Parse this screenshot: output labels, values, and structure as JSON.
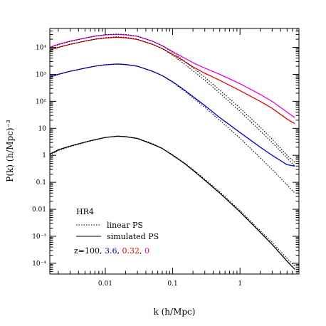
{
  "chart_data": {
    "type": "line",
    "xlabel": "k (h/Mpc)",
    "ylabel": "P(k) (h/Mpc)⁻³",
    "xscale": "log",
    "yscale": "log",
    "xlim": [
      0.0015,
      7.5
    ],
    "ylim": [
      4e-05,
      50000
    ],
    "grid": false,
    "x_ticks": [
      {
        "value": 0.01,
        "label": "0.01"
      },
      {
        "value": 0.1,
        "label": "0.1"
      },
      {
        "value": 1,
        "label": "1"
      }
    ],
    "y_ticks": [
      {
        "value": 0.0001,
        "label": "10⁻⁴"
      },
      {
        "value": 0.001,
        "label": "10⁻³"
      },
      {
        "value": 0.01,
        "label": "0.01"
      },
      {
        "value": 0.1,
        "label": "0.1"
      },
      {
        "value": 1,
        "label": "1"
      },
      {
        "value": 10,
        "label": "10"
      },
      {
        "value": 100,
        "label": "10²"
      },
      {
        "value": 1000,
        "label": "10³"
      },
      {
        "value": 10000,
        "label": "10⁴"
      }
    ],
    "legend": {
      "title": "HR4",
      "linear_label": "linear PS",
      "simulated_label": "simulated PS",
      "redshift_prefix": "z=100, ",
      "redshifts": [
        {
          "label": "3.6",
          "color": "#0000ee",
          "sep": ", "
        },
        {
          "label": "0.32",
          "color": "#ee0000",
          "sep": ", "
        },
        {
          "label": "0",
          "color": "#ee00ee",
          "sep": ""
        }
      ]
    },
    "series": [
      {
        "z": "100",
        "style": "simulated",
        "color": "#000000",
        "x": [
          0.0015,
          0.002,
          0.003,
          0.005,
          0.007,
          0.01,
          0.015,
          0.02,
          0.03,
          0.05,
          0.07,
          0.1,
          0.15,
          0.2,
          0.3,
          0.5,
          1,
          2,
          3,
          5,
          6.5
        ],
        "y": [
          1.1,
          1.6,
          2.2,
          3.1,
          3.8,
          4.6,
          5.1,
          4.9,
          4.2,
          2.6,
          1.8,
          1.0,
          0.5,
          0.28,
          0.12,
          0.04,
          0.008,
          0.0014,
          0.0005,
          0.00012,
          6e-05
        ]
      },
      {
        "z": "100",
        "style": "linear",
        "color": "#000000",
        "x": [
          0.0015,
          0.002,
          0.003,
          0.005,
          0.007,
          0.01,
          0.015,
          0.02,
          0.03,
          0.05,
          0.07,
          0.1,
          0.15,
          0.2,
          0.3,
          0.5,
          1,
          2,
          3,
          5,
          6.5
        ],
        "y": [
          1.0,
          1.5,
          2.1,
          3.0,
          3.7,
          4.6,
          5.2,
          5.0,
          4.3,
          2.7,
          1.8,
          1.05,
          0.52,
          0.3,
          0.13,
          0.045,
          0.009,
          0.0016,
          0.0006,
          0.00015,
          8e-05
        ]
      },
      {
        "z": "3.6",
        "style": "simulated",
        "color": "#0000ee",
        "x": [
          0.0015,
          0.002,
          0.003,
          0.005,
          0.007,
          0.01,
          0.015,
          0.02,
          0.03,
          0.05,
          0.07,
          0.1,
          0.15,
          0.2,
          0.3,
          0.5,
          1,
          2,
          3,
          5,
          6.5
        ],
        "y": [
          800,
          1000,
          1300,
          1700,
          2000,
          2250,
          2400,
          2300,
          2000,
          1300,
          900,
          530,
          260,
          150,
          70,
          25,
          7,
          2,
          1,
          0.45,
          0.4
        ]
      },
      {
        "z": "3.6",
        "style": "linear",
        "color": "#000000",
        "x": [
          0.0015,
          0.002,
          0.003,
          0.005,
          0.007,
          0.01,
          0.015,
          0.02,
          0.03,
          0.05,
          0.07,
          0.1,
          0.15,
          0.2,
          0.3,
          0.5,
          1,
          2,
          3,
          5,
          6.5
        ],
        "y": [
          780,
          980,
          1300,
          1700,
          2000,
          2300,
          2450,
          2350,
          2000,
          1300,
          900,
          510,
          240,
          135,
          60,
          20,
          4.3,
          0.8,
          0.3,
          0.08,
          0.04
        ]
      },
      {
        "z": "0.32",
        "style": "simulated",
        "color": "#ee0000",
        "x": [
          0.0015,
          0.002,
          0.003,
          0.005,
          0.007,
          0.01,
          0.015,
          0.02,
          0.03,
          0.05,
          0.07,
          0.1,
          0.15,
          0.2,
          0.3,
          0.5,
          1,
          2,
          3,
          5,
          6.5
        ],
        "y": [
          8000,
          10000,
          13000,
          17000,
          20000,
          22000,
          23500,
          22500,
          19500,
          13000,
          9000,
          5500,
          3000,
          1900,
          1100,
          600,
          250,
          100,
          55,
          22,
          15
        ]
      },
      {
        "z": "0.32",
        "style": "linear",
        "color": "#000000",
        "x": [
          0.0015,
          0.002,
          0.003,
          0.005,
          0.007,
          0.01,
          0.015,
          0.02,
          0.03,
          0.05,
          0.07,
          0.1,
          0.15,
          0.2,
          0.3,
          0.5,
          1,
          2,
          3,
          5,
          6.5
        ],
        "y": [
          7700,
          9800,
          13000,
          17000,
          20000,
          23000,
          24500,
          23500,
          20000,
          13000,
          9000,
          5100,
          2400,
          1350,
          600,
          200,
          43,
          8,
          3,
          0.8,
          0.4
        ]
      },
      {
        "z": "0",
        "style": "simulated",
        "color": "#ee00ee",
        "x": [
          0.0015,
          0.002,
          0.003,
          0.005,
          0.007,
          0.01,
          0.015,
          0.02,
          0.03,
          0.05,
          0.07,
          0.1,
          0.15,
          0.2,
          0.3,
          0.5,
          1,
          2,
          3,
          5,
          6.5
        ],
        "y": [
          10000,
          13000,
          17000,
          22000,
          26000,
          29000,
          30000,
          29000,
          25500,
          17000,
          11500,
          7000,
          4000,
          2700,
          1700,
          1000,
          450,
          180,
          100,
          40,
          25
        ]
      },
      {
        "z": "0",
        "style": "linear",
        "color": "#000000",
        "x": [
          0.0015,
          0.002,
          0.003,
          0.005,
          0.007,
          0.01,
          0.015,
          0.02,
          0.03,
          0.05,
          0.07,
          0.1,
          0.15,
          0.2,
          0.3,
          0.5,
          1,
          2,
          3,
          5,
          6.5
        ],
        "y": [
          9800,
          12500,
          16500,
          22000,
          26000,
          29500,
          31000,
          30000,
          26000,
          17000,
          11500,
          6500,
          3100,
          1750,
          780,
          260,
          56,
          11,
          4,
          1,
          0.55
        ]
      }
    ]
  }
}
